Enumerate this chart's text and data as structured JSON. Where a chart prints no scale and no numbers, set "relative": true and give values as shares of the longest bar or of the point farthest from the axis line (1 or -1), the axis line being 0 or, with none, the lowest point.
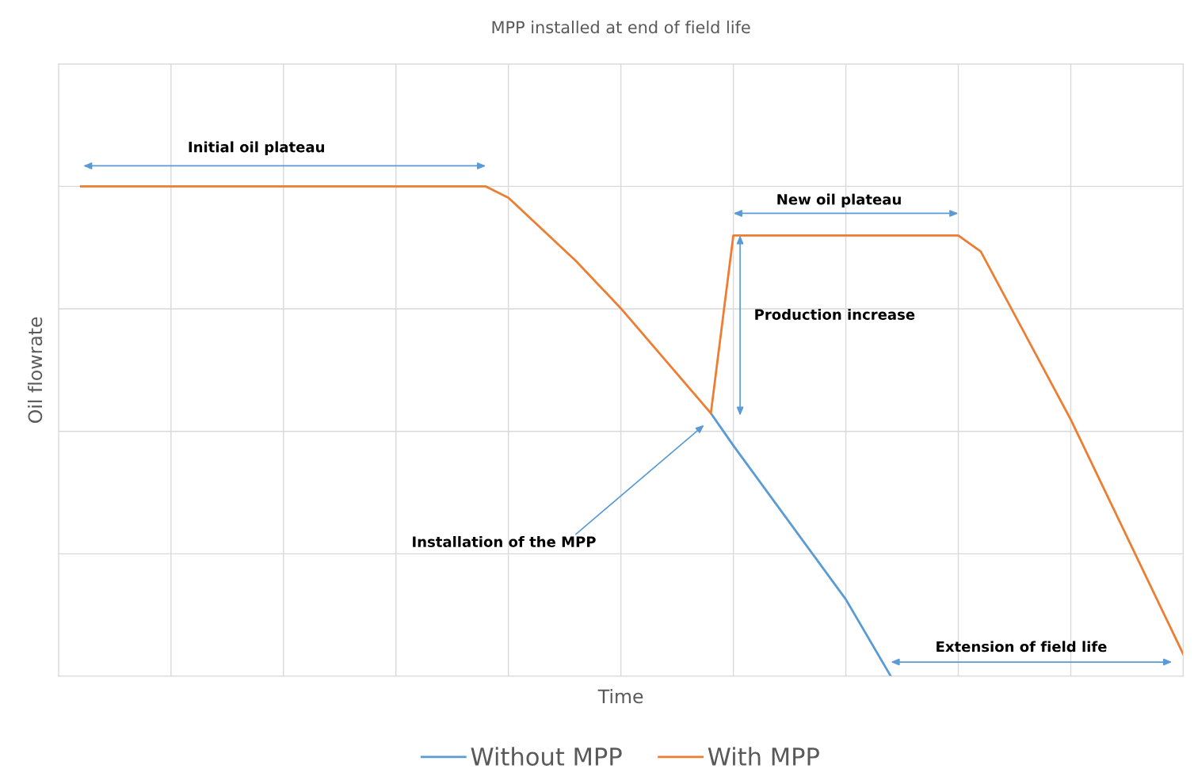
{
  "chart_data": {
    "type": "line",
    "title": "MPP installed at end of field life",
    "xlabel": "Time",
    "ylabel": "Oil flowrate",
    "relative": true,
    "categories": [
      null,
      null,
      null,
      null,
      null,
      null,
      null,
      null,
      null,
      null,
      null,
      null,
      null,
      null,
      null,
      null,
      null,
      null,
      null,
      null,
      null,
      null,
      null,
      null,
      null,
      null,
      null,
      null,
      null,
      null,
      null,
      null,
      null,
      null,
      null,
      null,
      null,
      null,
      null,
      null,
      null,
      null,
      null,
      null,
      null,
      null,
      null,
      null,
      null,
      null,
      null
    ],
    "series": [
      {
        "name": "Without MPP",
        "color": "#5b9bd5",
        "values": [
          null,
          null,
          null,
          null,
          null,
          null,
          null,
          null,
          null,
          null,
          null,
          null,
          null,
          null,
          null,
          null,
          null,
          null,
          null,
          null,
          null,
          null,
          null,
          null,
          null,
          null,
          null,
          null,
          null,
          0.537,
          0.471,
          null,
          null,
          null,
          null,
          0.157,
          null,
          0.0,
          null,
          null,
          null,
          null,
          null,
          null,
          null,
          null,
          null,
          null,
          null,
          null,
          null
        ]
      },
      {
        "name": "With MPP",
        "color": "#ed7d31",
        "values": [
          null,
          1.0,
          null,
          null,
          null,
          null,
          null,
          null,
          null,
          null,
          null,
          null,
          null,
          null,
          null,
          null,
          null,
          null,
          null,
          1.0,
          0.977,
          null,
          null,
          0.848,
          null,
          0.751,
          null,
          null,
          null,
          0.537,
          0.9,
          null,
          null,
          null,
          null,
          null,
          null,
          null,
          null,
          null,
          0.9,
          0.867,
          null,
          null,
          null,
          0.524,
          null,
          null,
          null,
          null,
          0.045
        ]
      }
    ],
    "annotations": [
      "Initial oil plateau",
      "New oil plateau",
      "Production increase",
      "Installation of the MPP",
      "Extension of field life"
    ],
    "grid": true,
    "legend": "bottom",
    "marker": "none",
    "line_style": "solid"
  }
}
